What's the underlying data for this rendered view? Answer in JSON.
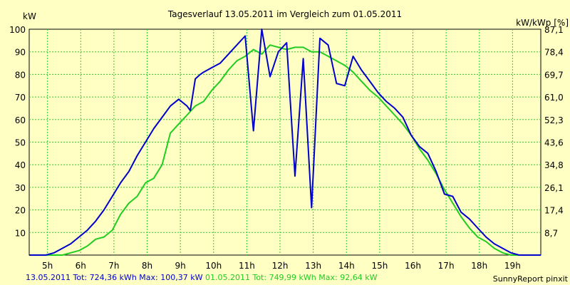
{
  "chart_data": {
    "type": "line",
    "title": "Tagesverlauf 13.05.2011 im Vergleich zum 01.05.2011",
    "ylabel_left": "kW",
    "ylabel_right": "kW/kWp [%]",
    "xlim": [
      4.45,
      19.85
    ],
    "ylim": [
      0,
      100
    ],
    "x_tick_values": [
      5,
      6,
      7,
      8,
      9,
      10,
      11,
      12,
      13,
      14,
      15,
      16,
      17,
      18,
      19
    ],
    "x_tick_labels": [
      "5h",
      "6h",
      "7h",
      "8h",
      "9h",
      "10h",
      "11h",
      "12h",
      "13h",
      "14h",
      "15h",
      "16h",
      "17h",
      "18h",
      "19h"
    ],
    "y_tick_values": [
      10,
      20,
      30,
      40,
      50,
      60,
      70,
      80,
      90,
      100
    ],
    "y_tick_labels": [
      "10",
      "20",
      "30",
      "40",
      "50",
      "60",
      "70",
      "80",
      "90",
      "100"
    ],
    "y2_tick_values": [
      10,
      20,
      30,
      40,
      50,
      60,
      70,
      80,
      90,
      100
    ],
    "y2_tick_labels": [
      "8,7",
      "17,4",
      "26,1",
      "34,8",
      "43,6",
      "52,3",
      "61,0",
      "69,7",
      "78,4",
      "87,1"
    ],
    "grid": true,
    "series": [
      {
        "name": "13.05.2011",
        "color": "#0000cc",
        "x": [
          4.45,
          4.95,
          5.2,
          5.45,
          5.7,
          5.95,
          6.2,
          6.45,
          6.7,
          6.95,
          7.2,
          7.45,
          7.7,
          7.95,
          8.2,
          8.45,
          8.7,
          8.95,
          9.2,
          9.3,
          9.45,
          9.6,
          9.7,
          9.95,
          10.2,
          10.45,
          10.7,
          10.95,
          11.2,
          11.45,
          11.7,
          11.95,
          12.2,
          12.45,
          12.7,
          12.95,
          13.2,
          13.45,
          13.7,
          13.95,
          14.2,
          14.45,
          14.7,
          14.95,
          15.2,
          15.45,
          15.7,
          15.95,
          16.2,
          16.45,
          16.7,
          16.95,
          17.2,
          17.45,
          17.7,
          17.95,
          18.2,
          18.45,
          18.7,
          18.95,
          19.2,
          19.45,
          19.6,
          19.85
        ],
        "values": [
          0,
          0,
          1,
          3,
          5,
          8,
          11,
          15,
          20,
          26,
          32,
          37,
          44,
          50,
          56,
          61,
          66,
          69,
          66,
          64,
          78,
          80,
          81,
          83,
          85,
          89,
          93,
          97,
          55,
          100,
          79,
          90,
          94,
          35,
          87,
          21,
          96,
          93,
          76,
          75,
          88,
          82,
          77,
          72,
          68,
          65,
          61,
          53,
          48,
          45,
          37,
          27,
          26,
          19,
          16,
          12,
          8,
          5,
          3,
          1,
          0,
          0,
          0,
          0
        ],
        "legend": {
          "date": "13.05.2011",
          "tot": "Tot: 724,36 kWh",
          "max": "Max: 100,37 kW"
        }
      },
      {
        "name": "01.05.2011",
        "color": "#22cc22",
        "x": [
          4.45,
          4.95,
          5.2,
          5.45,
          5.7,
          5.95,
          6.2,
          6.45,
          6.7,
          6.95,
          7.2,
          7.45,
          7.7,
          7.95,
          8.2,
          8.45,
          8.7,
          8.95,
          9.2,
          9.45,
          9.7,
          9.95,
          10.2,
          10.45,
          10.7,
          10.95,
          11.2,
          11.45,
          11.7,
          11.95,
          12.2,
          12.45,
          12.7,
          12.95,
          13.2,
          13.45,
          13.7,
          13.95,
          14.2,
          14.45,
          14.7,
          14.95,
          15.2,
          15.45,
          15.7,
          15.95,
          16.2,
          16.45,
          16.7,
          16.95,
          17.2,
          17.45,
          17.7,
          17.95,
          18.2,
          18.45,
          18.7,
          18.95,
          19.2,
          19.45,
          19.6,
          19.85
        ],
        "values": [
          0,
          0,
          0,
          0,
          1,
          2,
          4,
          7,
          8,
          11,
          18,
          23,
          26,
          32,
          34,
          40,
          54,
          58,
          62,
          66,
          68,
          73,
          77,
          82,
          86,
          88,
          91,
          89,
          93,
          92,
          91,
          92,
          92,
          90,
          90,
          88,
          86,
          84,
          81,
          77,
          73,
          70,
          66,
          62,
          58,
          53,
          47,
          42,
          36,
          29,
          23,
          17,
          12,
          8,
          6,
          3,
          1,
          0,
          0,
          0,
          0,
          0
        ],
        "legend": {
          "date": "01.05.2011",
          "tot": "Tot: 749,99 kWh",
          "max": "Max: 92,64 kW"
        }
      }
    ]
  },
  "footer": {
    "credit": "SunnyReport pinxit"
  }
}
